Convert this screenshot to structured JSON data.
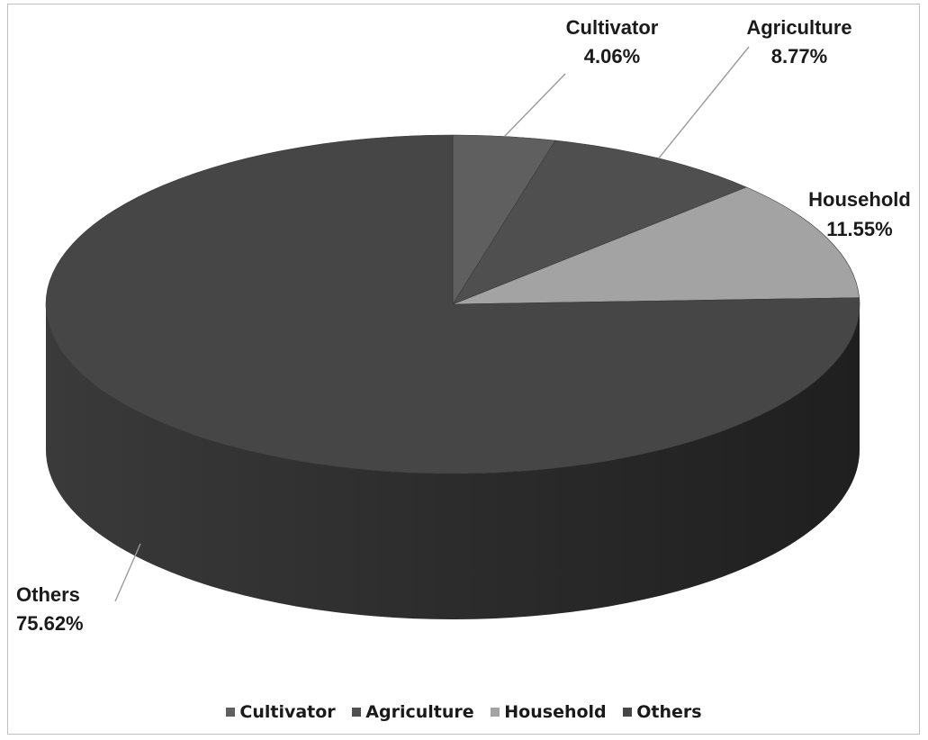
{
  "chart_data": {
    "type": "pie",
    "style": "3d",
    "title": "",
    "slices": [
      {
        "label": "Cultivator",
        "value": 4.06,
        "value_text": "4.06%",
        "color": "#5f5f5f"
      },
      {
        "label": "Agriculture",
        "value": 8.77,
        "value_text": "8.77%",
        "color": "#4f4f4f"
      },
      {
        "label": "Household",
        "value": 11.55,
        "value_text": "11.55%",
        "color": "#a3a3a3"
      },
      {
        "label": "Others",
        "value": 75.62,
        "value_text": "75.62%",
        "color": "#464646"
      }
    ],
    "legend": {
      "position": "bottom",
      "entries": [
        "Cultivator",
        "Agriculture",
        "Household",
        "Others"
      ]
    }
  }
}
